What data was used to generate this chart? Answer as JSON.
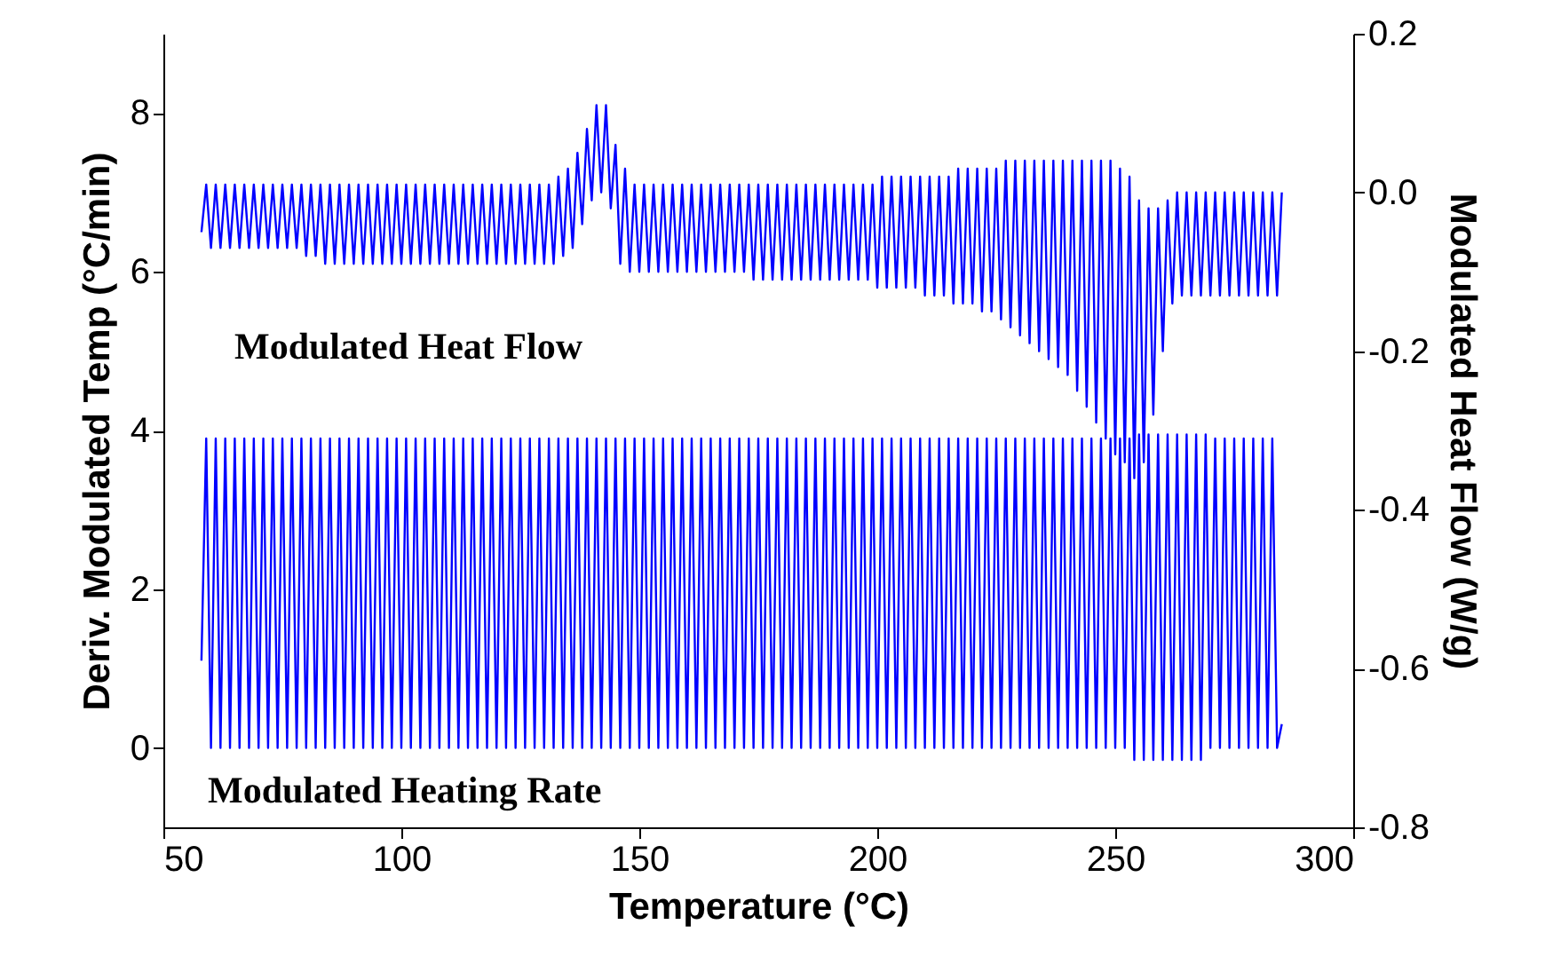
{
  "chart_data": {
    "type": "line",
    "xlabel": "Temperature (°C)",
    "ylabel": "Deriv. Modulated Temp (°C/min)",
    "y2label": "Modulated Heat Flow (W/g)",
    "x": [
      58,
      59,
      60,
      61,
      62,
      63,
      64,
      65,
      66,
      67,
      68,
      69,
      70,
      71,
      72,
      73,
      74,
      75,
      76,
      77,
      78,
      79,
      80,
      81,
      82,
      83,
      84,
      85,
      86,
      87,
      88,
      89,
      90,
      91,
      92,
      93,
      94,
      95,
      96,
      97,
      98,
      99,
      100,
      101,
      102,
      103,
      104,
      105,
      106,
      107,
      108,
      109,
      110,
      111,
      112,
      113,
      114,
      115,
      116,
      117,
      118,
      119,
      120,
      121,
      122,
      123,
      124,
      125,
      126,
      127,
      128,
      129,
      130,
      131,
      132,
      133,
      134,
      135,
      136,
      137,
      138,
      139,
      140,
      141,
      142,
      143,
      144,
      145,
      146,
      147,
      148,
      149,
      150,
      151,
      152,
      153,
      154,
      155,
      156,
      157,
      158,
      159,
      160,
      161,
      162,
      163,
      164,
      165,
      166,
      167,
      168,
      169,
      170,
      171,
      172,
      173,
      174,
      175,
      176,
      177,
      178,
      179,
      180,
      181,
      182,
      183,
      184,
      185,
      186,
      187,
      188,
      189,
      190,
      191,
      192,
      193,
      194,
      195,
      196,
      197,
      198,
      199,
      200,
      201,
      202,
      203,
      204,
      205,
      206,
      207,
      208,
      209,
      210,
      211,
      212,
      213,
      214,
      215,
      216,
      217,
      218,
      219,
      220,
      221,
      222,
      223,
      224,
      225,
      226,
      227,
      228,
      229,
      230,
      231,
      232,
      233,
      234,
      235,
      236,
      237,
      238,
      239,
      240,
      241,
      242,
      243,
      244,
      245,
      246,
      247,
      248,
      249,
      250,
      251,
      252,
      253,
      254,
      255,
      256,
      257,
      258,
      259,
      260,
      261,
      262,
      263,
      264,
      265,
      266,
      267,
      268,
      269,
      270,
      271,
      272,
      273,
      274,
      275,
      276,
      277,
      278,
      279,
      280,
      281,
      282,
      283,
      284,
      285
    ],
    "series": [
      {
        "name": "Modulated Heat Flow",
        "color": "#0000ff",
        "axis": "y2",
        "values": [
          -0.05,
          0.01,
          -0.07,
          0.01,
          -0.07,
          0.01,
          -0.07,
          0.01,
          -0.07,
          0.01,
          -0.07,
          0.01,
          -0.07,
          0.01,
          -0.07,
          0.01,
          -0.07,
          0.01,
          -0.07,
          0.01,
          -0.07,
          0.01,
          -0.08,
          0.01,
          -0.08,
          0.01,
          -0.09,
          0.01,
          -0.09,
          0.01,
          -0.09,
          0.01,
          -0.09,
          0.01,
          -0.09,
          0.01,
          -0.09,
          0.01,
          -0.09,
          0.01,
          -0.09,
          0.01,
          -0.09,
          0.01,
          -0.09,
          0.01,
          -0.09,
          0.01,
          -0.09,
          0.01,
          -0.09,
          0.01,
          -0.09,
          0.01,
          -0.09,
          0.01,
          -0.09,
          0.01,
          -0.09,
          0.01,
          -0.09,
          0.01,
          -0.09,
          0.01,
          -0.09,
          0.01,
          -0.09,
          0.01,
          -0.09,
          0.01,
          -0.09,
          0.01,
          -0.09,
          0.01,
          -0.09,
          0.02,
          -0.08,
          0.03,
          -0.07,
          0.05,
          -0.04,
          0.08,
          -0.01,
          0.11,
          0.0,
          0.11,
          -0.02,
          0.06,
          -0.09,
          0.03,
          -0.1,
          0.01,
          -0.1,
          0.01,
          -0.1,
          0.01,
          -0.1,
          0.01,
          -0.1,
          0.01,
          -0.1,
          0.01,
          -0.1,
          0.01,
          -0.1,
          0.01,
          -0.1,
          0.01,
          -0.1,
          0.01,
          -0.1,
          0.01,
          -0.1,
          0.01,
          -0.1,
          0.01,
          -0.11,
          0.01,
          -0.11,
          0.01,
          -0.11,
          0.01,
          -0.11,
          0.01,
          -0.11,
          0.01,
          -0.11,
          0.01,
          -0.11,
          0.01,
          -0.11,
          0.01,
          -0.11,
          0.01,
          -0.11,
          0.01,
          -0.11,
          0.01,
          -0.11,
          0.01,
          -0.11,
          0.01,
          -0.12,
          0.02,
          -0.12,
          0.02,
          -0.12,
          0.02,
          -0.12,
          0.02,
          -0.12,
          0.02,
          -0.13,
          0.02,
          -0.13,
          0.02,
          -0.13,
          0.02,
          -0.14,
          0.03,
          -0.14,
          0.03,
          -0.14,
          0.03,
          -0.15,
          0.03,
          -0.15,
          0.03,
          -0.16,
          0.04,
          -0.17,
          0.04,
          -0.18,
          0.04,
          -0.19,
          0.04,
          -0.2,
          0.04,
          -0.21,
          0.04,
          -0.22,
          0.04,
          -0.23,
          0.04,
          -0.25,
          0.04,
          -0.27,
          0.04,
          -0.29,
          0.04,
          -0.31,
          0.04,
          -0.33,
          0.03,
          -0.34,
          0.02,
          -0.36,
          -0.01,
          -0.34,
          -0.02,
          -0.28,
          -0.02,
          -0.2,
          -0.01,
          -0.14,
          0.0,
          -0.13,
          0.0,
          -0.13,
          0.0,
          -0.13,
          0.0,
          -0.13,
          0.0,
          -0.13,
          0.0,
          -0.13,
          0.0,
          -0.13,
          0.0,
          -0.13,
          0.0,
          -0.13,
          0.0,
          -0.13,
          0.0,
          -0.13,
          0.0
        ]
      },
      {
        "name": "Modulated Heating Rate",
        "color": "#0000ff",
        "values": [
          1.1,
          3.9,
          0,
          3.9,
          0,
          3.9,
          0,
          3.9,
          0,
          3.9,
          0,
          3.9,
          0,
          3.9,
          0,
          3.9,
          0,
          3.9,
          0,
          3.9,
          0,
          3.9,
          0,
          3.9,
          0,
          3.9,
          0,
          3.9,
          0,
          3.9,
          0,
          3.9,
          0,
          3.9,
          0,
          3.9,
          0,
          3.9,
          0,
          3.9,
          0,
          3.9,
          0,
          3.9,
          0,
          3.9,
          0,
          3.9,
          0,
          3.9,
          0,
          3.9,
          0,
          3.9,
          0,
          3.9,
          0,
          3.9,
          0,
          3.9,
          0,
          3.9,
          0,
          3.9,
          0,
          3.9,
          0,
          3.9,
          0,
          3.9,
          0,
          3.9,
          0,
          3.9,
          0,
          3.9,
          0,
          3.9,
          0,
          3.9,
          0,
          3.9,
          0,
          3.9,
          0,
          3.9,
          0,
          3.9,
          0,
          3.9,
          0,
          3.9,
          0,
          3.9,
          0,
          3.9,
          0,
          3.9,
          0,
          3.9,
          0,
          3.9,
          0,
          3.9,
          0,
          3.9,
          0,
          3.9,
          0,
          3.9,
          0,
          3.9,
          0,
          3.9,
          0,
          3.9,
          0,
          3.9,
          0,
          3.9,
          0,
          3.9,
          0,
          3.9,
          0,
          3.9,
          0,
          3.9,
          0,
          3.9,
          0,
          3.9,
          0,
          3.9,
          0,
          3.9,
          0,
          3.9,
          0,
          3.9,
          0,
          3.9,
          0,
          3.9,
          0,
          3.9,
          0,
          3.9,
          0,
          3.9,
          0,
          3.9,
          0,
          3.9,
          0,
          3.9,
          0,
          3.9,
          0,
          3.9,
          0,
          3.9,
          0,
          3.9,
          0,
          3.9,
          0,
          3.9,
          0,
          3.9,
          0,
          3.9,
          0,
          3.9,
          0,
          3.9,
          0,
          3.9,
          0,
          3.9,
          0,
          3.9,
          0,
          3.9,
          0,
          3.9,
          0,
          3.9,
          0,
          3.9,
          0,
          3.9,
          0,
          3.9,
          0,
          3.9,
          -0.15,
          3.95,
          -0.15,
          3.95,
          -0.15,
          3.95,
          -0.15,
          3.95,
          -0.15,
          3.95,
          -0.15,
          3.95,
          -0.15,
          3.95,
          -0.15,
          3.95,
          0,
          3.9,
          0,
          3.9,
          0,
          3.9,
          0,
          3.9,
          0,
          3.9,
          0,
          3.9,
          0,
          3.9,
          0,
          0.3
        ]
      }
    ],
    "xlim": [
      50,
      300
    ],
    "xticks": [
      50,
      100,
      150,
      200,
      250,
      300
    ],
    "ylim": [
      -1,
      9
    ],
    "yticks": [
      0,
      2,
      4,
      6,
      8
    ],
    "y2lim": [
      -0.8,
      0.2
    ],
    "y2ticks": [
      -0.8,
      -0.6,
      -0.4,
      -0.2,
      {
        "value": 0,
        "label": "0.0"
      },
      0.2
    ],
    "grid": false,
    "line_style": "solid",
    "marker": "none"
  }
}
